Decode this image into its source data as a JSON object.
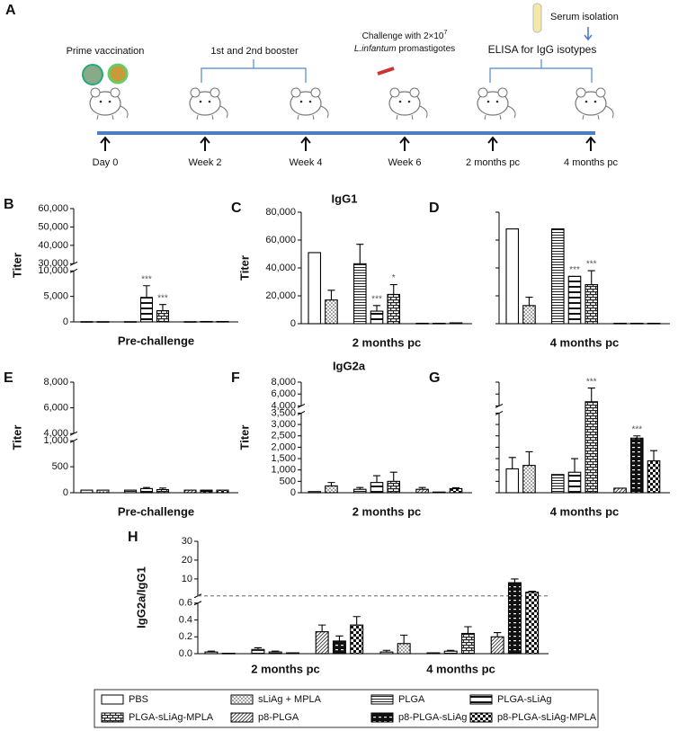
{
  "timeline": {
    "label": "A",
    "prime": "Prime vaccination",
    "booster": "1st and 2nd booster",
    "challenge": "Challenge with 2×10",
    "challenge_exp": "7",
    "challenge_species": "L.infantum",
    "challenge_rest": " promastigotes",
    "serum": "Serum isolation",
    "elisa": "ELISA for IgG isotypes",
    "timepoints": [
      "Day 0",
      "Week 2",
      "Week 4",
      "Week 6",
      "2 months pc",
      "4 months pc"
    ]
  },
  "titles": {
    "igg1": "IgG1",
    "igg2a": "IgG2a"
  },
  "legend": [
    {
      "name": "PBS",
      "pattern": "plain"
    },
    {
      "name": "sLiAg + MPLA",
      "pattern": "dots"
    },
    {
      "name": "PLGA",
      "pattern": "hlines"
    },
    {
      "name": "PLGA-sLiAg",
      "pattern": "hwide"
    },
    {
      "name": "PLGA-sLiAg-MPLA",
      "pattern": "brick"
    },
    {
      "name": "p8-PLGA",
      "pattern": "diag"
    },
    {
      "name": "p8-PLGA-sLiAg",
      "pattern": "darkdash"
    },
    {
      "name": "p8-PLGA-sLiAg-MPLA",
      "pattern": "checker"
    }
  ],
  "chart_data": [
    {
      "type": "bar",
      "label": "B",
      "ylabel": "Titer",
      "xlabel": "Pre-challenge",
      "ylim": [
        0,
        60000
      ],
      "ybreak": [
        10000,
        30000
      ],
      "yticks": [
        0,
        {
          "value": 5000,
          "label": "5,000"
        },
        {
          "value": 10000,
          "label": "10,000"
        },
        {
          "value": 30000,
          "label": "30,000"
        },
        {
          "value": 40000,
          "label": "40,000"
        },
        {
          "value": 50000,
          "label": "50,000"
        },
        {
          "value": 60000,
          "label": "60,000"
        }
      ],
      "values": [
        50,
        50,
        50,
        4800,
        2200,
        50,
        80,
        80
      ],
      "errors": [
        null,
        null,
        null,
        2300,
        1200,
        null,
        null,
        null
      ],
      "annotations": [
        null,
        null,
        null,
        "***",
        "***",
        null,
        null,
        null
      ]
    },
    {
      "type": "bar",
      "label": "C",
      "ylabel": "Titer",
      "xlabel": "2 months pc",
      "ylim": [
        0,
        80000
      ],
      "yticks": [
        0,
        {
          "value": 20000,
          "label": "20,000"
        },
        {
          "value": 40000,
          "label": "40,000"
        },
        {
          "value": 60000,
          "label": "60,000"
        },
        {
          "value": 80000,
          "label": "80,000"
        }
      ],
      "values": [
        51000,
        17000,
        43000,
        9000,
        21000,
        300,
        300,
        600
      ],
      "errors": [
        null,
        7000,
        14000,
        4000,
        7000,
        null,
        null,
        null
      ],
      "annotations": [
        null,
        null,
        null,
        "***",
        "*",
        null,
        null,
        null
      ]
    },
    {
      "type": "bar",
      "label": "D",
      "xlabel": "4 months pc",
      "tick_labels": false,
      "ylim": [
        0,
        80000
      ],
      "yticks": [
        0,
        20000,
        40000,
        60000,
        80000
      ],
      "values": [
        68000,
        13000,
        68000,
        34000,
        28000,
        300,
        300,
        300
      ],
      "errors": [
        null,
        6000,
        null,
        null,
        10000,
        null,
        null,
        null
      ],
      "annotations": [
        null,
        null,
        null,
        "***",
        "***",
        null,
        null,
        null
      ]
    },
    {
      "type": "bar",
      "label": "E",
      "ylabel": "Titer",
      "xlabel": "Pre-challenge",
      "ylim": [
        0,
        8000
      ],
      "ybreak": [
        1000,
        4000
      ],
      "yticks": [
        0,
        500,
        {
          "value": 1000,
          "label": "1,000"
        },
        {
          "value": 4000,
          "label": "4,000"
        },
        {
          "value": 6000,
          "label": "6,000"
        },
        {
          "value": 8000,
          "label": "8,000"
        }
      ],
      "values": [
        50,
        50,
        50,
        80,
        60,
        50,
        50,
        50
      ],
      "errors": [
        null,
        null,
        null,
        20,
        30,
        null,
        null,
        null
      ]
    },
    {
      "type": "bar",
      "label": "F",
      "ylabel": "Titer",
      "xlabel": "2 months pc",
      "ylim": [
        0,
        8000
      ],
      "ybreak": [
        3500,
        4000
      ],
      "yticks": [
        0,
        500,
        {
          "value": 1000,
          "label": "1,000"
        },
        {
          "value": 1500,
          "label": "1,500"
        },
        {
          "value": 2000,
          "label": "2,000"
        },
        {
          "value": 2500,
          "label": "2,500"
        },
        {
          "value": 3000,
          "label": "3,000"
        },
        {
          "value": 3500,
          "label": "3,500"
        },
        {
          "value": 4000,
          "label": "4,000"
        },
        {
          "value": 6000,
          "label": "6,000"
        },
        {
          "value": 8000,
          "label": "8,000"
        }
      ],
      "values": [
        50,
        300,
        150,
        450,
        500,
        150,
        30,
        180
      ],
      "errors": [
        null,
        150,
        80,
        300,
        400,
        80,
        null,
        40
      ]
    },
    {
      "type": "bar",
      "label": "G",
      "xlabel": "4 months pc",
      "tick_labels": false,
      "ylim": [
        0,
        8000
      ],
      "ybreak": [
        3500,
        4000
      ],
      "yticks": [
        0,
        500,
        1000,
        1500,
        2000,
        2500,
        3000,
        3500,
        4000,
        6000,
        8000
      ],
      "values": [
        1050,
        1200,
        800,
        900,
        4700,
        200,
        2400,
        1400
      ],
      "errors": [
        500,
        600,
        null,
        600,
        2300,
        null,
        100,
        450
      ],
      "annotations": [
        null,
        null,
        null,
        null,
        "***",
        null,
        "***",
        null
      ]
    },
    {
      "type": "grouped-bar",
      "label": "H",
      "ylabel": "IgG2a/IgG1",
      "categories": [
        "2 months pc",
        "4 months pc"
      ],
      "ylim": [
        0,
        30
      ],
      "ybreak": [
        0.6,
        1
      ],
      "reference_line": 1,
      "yticks": [
        {
          "value": 0,
          "label": "0.0"
        },
        0.2,
        0.4,
        0.6,
        10,
        20,
        30
      ],
      "values": [
        [
          0.02,
          0.005,
          0.05,
          0.02,
          0.01,
          0.26,
          0.15,
          0.34
        ],
        [
          0.02,
          0.12,
          0.01,
          0.03,
          0.24,
          0.2,
          8,
          3
        ]
      ],
      "errors": [
        [
          0.01,
          null,
          0.02,
          0.01,
          null,
          0.08,
          0.06,
          0.1
        ],
        [
          0.02,
          0.1,
          null,
          0.01,
          0.08,
          0.05,
          2,
          0.5
        ]
      ]
    }
  ]
}
